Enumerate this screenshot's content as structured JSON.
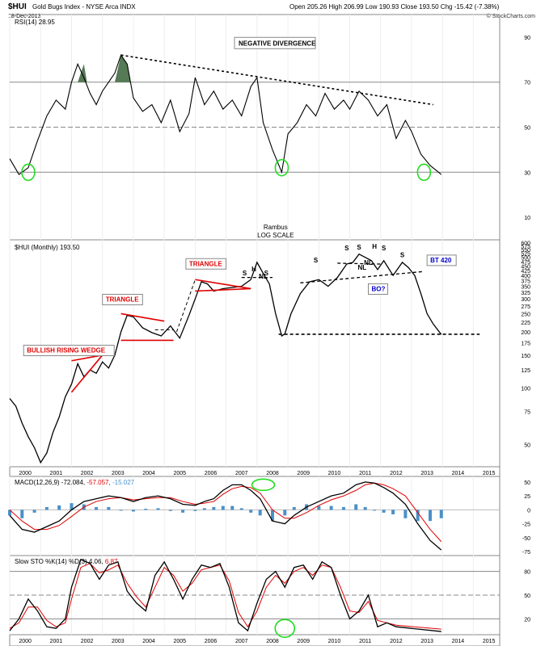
{
  "header": {
    "symbol": "$HUI",
    "name": "Gold Bugs Index - NYSE Arca INDX",
    "date": "18-Dec-2013",
    "ohlc": "Open 205.26  High 206.99  Low 190.93  Close 193.50  Chg -15.42 (-7.38%)",
    "brand": "© StockCharts.com"
  },
  "rambus": {
    "line1": "Rambus",
    "line2": "LOG SCALE"
  },
  "colors": {
    "price": "#000000",
    "annot_red": "#e00000",
    "signal_red": "#e00000",
    "hist_blue": "#4a90c8",
    "rsi_fill": "#557a55",
    "green_circle": "#22dd22",
    "grid": "#999999",
    "box_blue": "#0000cc"
  },
  "years": [
    "2000",
    "2001",
    "2002",
    "2003",
    "2004",
    "2005",
    "2006",
    "2007",
    "2008",
    "2009",
    "2010",
    "2011",
    "2012",
    "2013",
    "2014",
    "2015"
  ],
  "chart_data": [
    {
      "type": "line",
      "title": "RSI(14) 28.95",
      "yticks": [
        10,
        30,
        50,
        70,
        90
      ],
      "ylim": [
        0,
        100
      ],
      "x": [
        2000.0,
        2000.3,
        2000.6,
        2000.9,
        2001.2,
        2001.5,
        2001.8,
        2002.0,
        2002.2,
        2002.4,
        2002.6,
        2002.8,
        2003.0,
        2003.2,
        2003.4,
        2003.6,
        2003.8,
        2004.0,
        2004.3,
        2004.6,
        2004.9,
        2005.2,
        2005.5,
        2005.8,
        2006.0,
        2006.3,
        2006.6,
        2006.9,
        2007.2,
        2007.5,
        2007.8,
        2008.0,
        2008.2,
        2008.5,
        2008.8,
        2009.0,
        2009.3,
        2009.6,
        2009.9,
        2010.2,
        2010.5,
        2010.8,
        2011.0,
        2011.3,
        2011.6,
        2011.9,
        2012.2,
        2012.5,
        2012.8,
        2013.0,
        2013.3,
        2013.6,
        2013.96
      ],
      "values": [
        36,
        29,
        32,
        44,
        55,
        62,
        58,
        70,
        78,
        72,
        65,
        60,
        66,
        70,
        74,
        82,
        78,
        63,
        57,
        60,
        52,
        62,
        48,
        56,
        72,
        60,
        66,
        58,
        62,
        55,
        68,
        72,
        52,
        40,
        30,
        47,
        52,
        60,
        55,
        65,
        58,
        62,
        58,
        66,
        62,
        55,
        60,
        45,
        53,
        48,
        38,
        33,
        29
      ],
      "annotations": [
        "NEGATIVE DIVERGENCE"
      ]
    },
    {
      "type": "line",
      "title": "$HUI (Monthly) 193.50",
      "scale": "log",
      "yticks": [
        50,
        75,
        100,
        125,
        150,
        175,
        200,
        225,
        250,
        275,
        300,
        325,
        350,
        375,
        400,
        425,
        450,
        475,
        500,
        525,
        550,
        575,
        600
      ],
      "ylim": [
        38,
        620
      ],
      "x": [
        2000.0,
        2000.2,
        2000.4,
        2000.6,
        2000.8,
        2001.0,
        2001.2,
        2001.4,
        2001.6,
        2001.8,
        2002.0,
        2002.2,
        2002.4,
        2002.6,
        2002.8,
        2003.0,
        2003.2,
        2003.4,
        2003.6,
        2003.8,
        2004.0,
        2004.3,
        2004.6,
        2004.9,
        2005.2,
        2005.5,
        2005.8,
        2006.0,
        2006.2,
        2006.4,
        2006.6,
        2006.9,
        2007.2,
        2007.5,
        2007.8,
        2008.0,
        2008.2,
        2008.4,
        2008.6,
        2008.8,
        2008.9,
        2009.1,
        2009.4,
        2009.7,
        2010.0,
        2010.3,
        2010.6,
        2010.9,
        2011.1,
        2011.3,
        2011.5,
        2011.7,
        2011.9,
        2012.1,
        2012.4,
        2012.7,
        2012.9,
        2013.1,
        2013.3,
        2013.5,
        2013.7,
        2013.96
      ],
      "values": [
        88,
        80,
        65,
        55,
        48,
        40,
        45,
        58,
        70,
        90,
        105,
        135,
        115,
        125,
        120,
        138,
        128,
        150,
        200,
        245,
        240,
        210,
        198,
        190,
        215,
        185,
        245,
        300,
        370,
        360,
        330,
        340,
        345,
        350,
        380,
        470,
        410,
        360,
        250,
        190,
        195,
        250,
        320,
        370,
        380,
        350,
        390,
        460,
        470,
        520,
        500,
        480,
        430,
        480,
        400,
        470,
        440,
        400,
        320,
        250,
        220,
        193.5
      ],
      "annotations": [
        "BULLISH RISING WEDGE",
        "TRIANGLE",
        "TRIANGLE",
        "H",
        "S",
        "S",
        "NL",
        "S",
        "S",
        "S",
        "H",
        "S",
        "NL",
        "S",
        "BT 420",
        "BO?"
      ]
    },
    {
      "type": "line",
      "title": "MACD(12,26,9) -72.084, -57.057, -15.027",
      "yticks": [
        -75,
        -50,
        -25,
        0,
        25,
        50
      ],
      "ylim": [
        -82,
        60
      ],
      "series": [
        {
          "name": "MACD(12,26,9) -72.084",
          "values": [
            -10,
            -35,
            -40,
            -30,
            -20,
            0,
            15,
            20,
            25,
            22,
            15,
            22,
            25,
            20,
            10,
            8,
            15,
            20,
            35,
            45,
            45,
            35,
            20,
            -20,
            -25,
            -10,
            5,
            15,
            25,
            30,
            45,
            50,
            48,
            40,
            30,
            10,
            -25,
            -55,
            -72
          ]
        },
        {
          "name": "-57.057",
          "values": [
            0,
            -20,
            -35,
            -35,
            -28,
            -12,
            5,
            15,
            20,
            22,
            18,
            20,
            22,
            22,
            15,
            10,
            12,
            15,
            28,
            38,
            42,
            40,
            30,
            0,
            -15,
            -15,
            -5,
            8,
            18,
            25,
            35,
            45,
            48,
            45,
            38,
            25,
            -5,
            -35,
            -57
          ]
        },
        {
          "name": "-15.027",
          "values": [
            -10,
            -15,
            -5,
            5,
            8,
            12,
            10,
            5,
            5,
            0,
            -3,
            2,
            3,
            -2,
            -5,
            -2,
            3,
            5,
            7,
            7,
            3,
            -5,
            -10,
            -20,
            -10,
            5,
            10,
            7,
            7,
            5,
            10,
            5,
            0,
            -5,
            -8,
            -15,
            -20,
            -20,
            -15
          ]
        }
      ],
      "x": [
        2000.0,
        2000.4,
        2000.8,
        2001.2,
        2001.6,
        2002.0,
        2002.4,
        2002.8,
        2003.2,
        2003.6,
        2004.0,
        2004.4,
        2004.8,
        2005.2,
        2005.6,
        2006.0,
        2006.3,
        2006.6,
        2006.9,
        2007.2,
        2007.5,
        2007.8,
        2008.1,
        2008.5,
        2008.9,
        2009.2,
        2009.6,
        2010.0,
        2010.4,
        2010.8,
        2011.2,
        2011.5,
        2011.8,
        2012.1,
        2012.4,
        2012.8,
        2013.2,
        2013.6,
        2013.96
      ]
    },
    {
      "type": "line",
      "title": "Slow STO %K(14) %D(3) 4.06, 6.87",
      "yticks": [
        20,
        50,
        80
      ],
      "ylim": [
        0,
        100
      ],
      "series": [
        {
          "name": "%K(14) 4.06",
          "values": [
            5,
            20,
            45,
            30,
            10,
            8,
            20,
            60,
            95,
            90,
            70,
            88,
            92,
            55,
            40,
            30,
            75,
            92,
            70,
            45,
            70,
            88,
            85,
            90,
            60,
            15,
            5,
            40,
            70,
            80,
            60,
            85,
            88,
            70,
            92,
            85,
            50,
            20,
            30,
            50,
            10,
            15,
            10,
            4
          ]
        },
        {
          "name": "%D(3) 6.87",
          "values": [
            8,
            15,
            35,
            35,
            18,
            10,
            15,
            45,
            85,
            90,
            78,
            82,
            88,
            65,
            48,
            35,
            60,
            85,
            75,
            55,
            65,
            82,
            85,
            88,
            68,
            28,
            10,
            30,
            60,
            75,
            65,
            80,
            85,
            75,
            88,
            85,
            60,
            30,
            28,
            42,
            18,
            15,
            12,
            7
          ]
        }
      ],
      "x": [
        2000.0,
        2000.3,
        2000.6,
        2000.9,
        2001.2,
        2001.5,
        2001.8,
        2002.0,
        2002.3,
        2002.6,
        2002.9,
        2003.2,
        2003.5,
        2003.8,
        2004.1,
        2004.4,
        2004.7,
        2005.0,
        2005.3,
        2005.6,
        2005.9,
        2006.2,
        2006.5,
        2006.8,
        2007.1,
        2007.4,
        2007.7,
        2008.0,
        2008.3,
        2008.6,
        2008.9,
        2009.2,
        2009.5,
        2009.8,
        2010.1,
        2010.4,
        2010.7,
        2011.0,
        2011.3,
        2011.6,
        2011.9,
        2012.2,
        2012.5,
        2013.96
      ]
    }
  ]
}
